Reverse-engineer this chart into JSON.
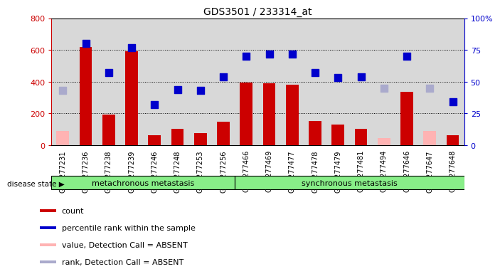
{
  "title": "GDS3501 / 233314_at",
  "samples": [
    "GSM277231",
    "GSM277236",
    "GSM277238",
    "GSM277239",
    "GSM277246",
    "GSM277248",
    "GSM277253",
    "GSM277256",
    "GSM277466",
    "GSM277469",
    "GSM277477",
    "GSM277478",
    "GSM277479",
    "GSM277481",
    "GSM277494",
    "GSM277646",
    "GSM277647",
    "GSM277648"
  ],
  "bar_values": [
    null,
    620,
    195,
    590,
    65,
    105,
    75,
    150,
    395,
    390,
    380,
    155,
    130,
    105,
    null,
    335,
    null,
    65
  ],
  "bar_absent_values": [
    90,
    null,
    null,
    null,
    null,
    null,
    null,
    null,
    null,
    null,
    null,
    null,
    null,
    null,
    45,
    null,
    90,
    null
  ],
  "rank_values_pct": [
    null,
    80,
    57,
    77,
    32,
    44,
    43,
    54,
    70,
    72,
    72,
    57,
    53,
    54,
    null,
    70,
    null,
    34
  ],
  "rank_absent_values_pct": [
    43,
    null,
    null,
    null,
    null,
    null,
    null,
    null,
    null,
    null,
    null,
    null,
    null,
    null,
    45,
    null,
    45,
    null
  ],
  "n_metachronous": 8,
  "n_synchronous": 10,
  "ylim_left": [
    0,
    800
  ],
  "ylim_right": [
    0,
    100
  ],
  "yticks_left": [
    0,
    200,
    400,
    600,
    800
  ],
  "yticks_right": [
    0,
    25,
    50,
    75,
    100
  ],
  "bar_color": "#cc0000",
  "bar_absent_color": "#ffb3b3",
  "rank_color": "#0000cc",
  "rank_absent_color": "#aaaacc",
  "group_color": "#88ee88",
  "background_color": "#ffffff",
  "col_bg_color": "#d8d8d8",
  "legend_items": [
    {
      "label": "count",
      "color": "#cc0000"
    },
    {
      "label": "percentile rank within the sample",
      "color": "#0000cc"
    },
    {
      "label": "value, Detection Call = ABSENT",
      "color": "#ffb3b3"
    },
    {
      "label": "rank, Detection Call = ABSENT",
      "color": "#aaaacc"
    }
  ]
}
